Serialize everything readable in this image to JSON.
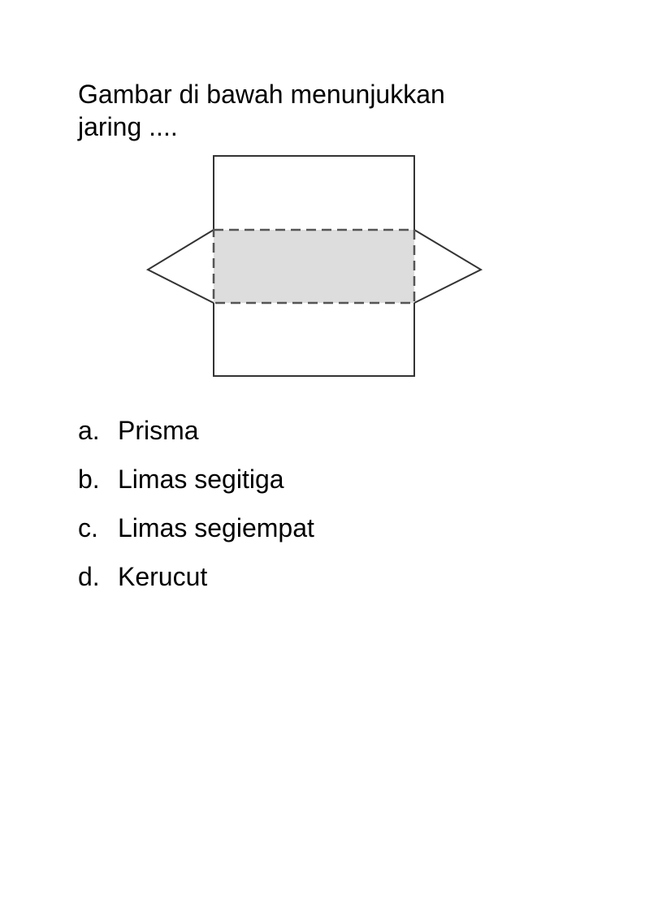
{
  "question": {
    "line1": "Gambar di bawah menunjukkan",
    "line2": "jaring ...."
  },
  "figure": {
    "shaded_color": "#dddddd",
    "stroke_color": "#333333"
  },
  "options": [
    {
      "letter": "a.",
      "text": "Prisma"
    },
    {
      "letter": "b.",
      "text": "Limas segitiga"
    },
    {
      "letter": "c.",
      "text": "Limas segiempat"
    },
    {
      "letter": "d.",
      "text": "Kerucut"
    }
  ]
}
